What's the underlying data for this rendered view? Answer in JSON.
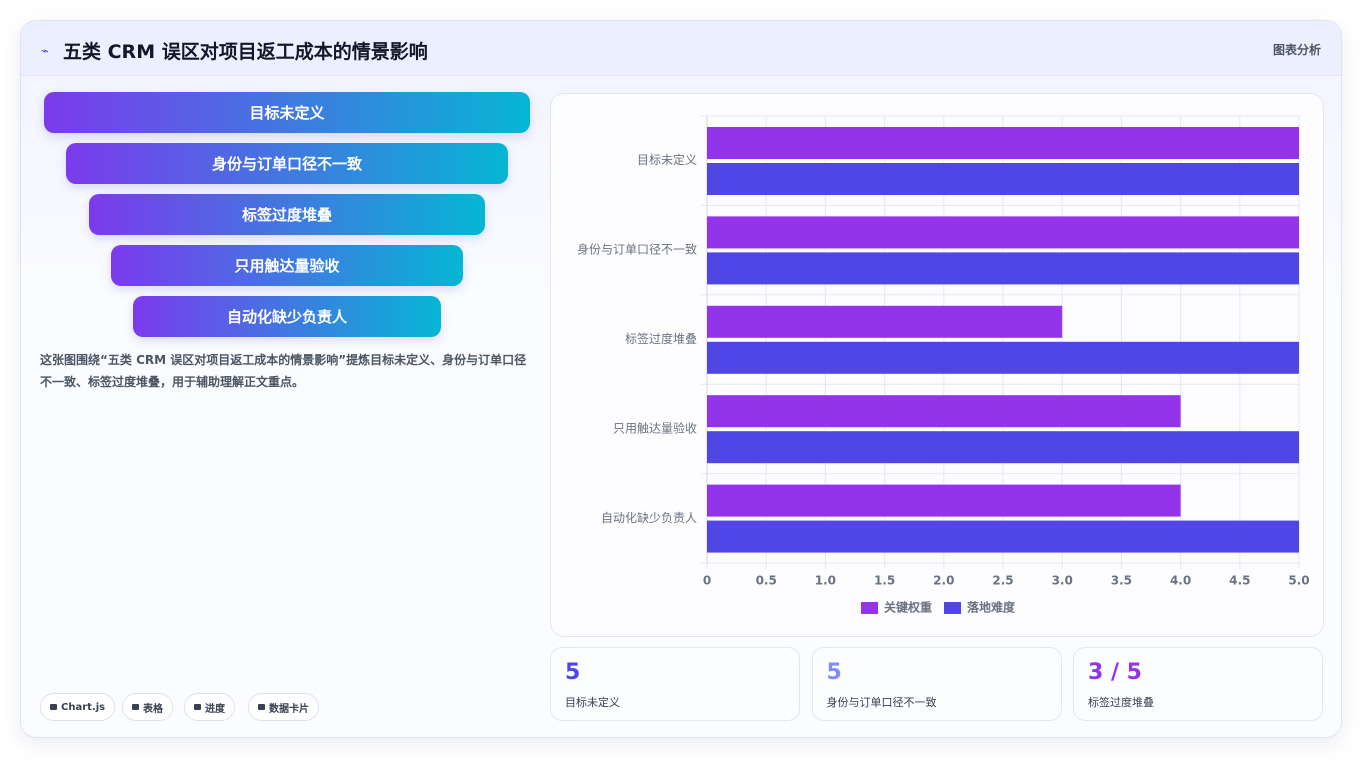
{
  "header": {
    "title": "五类 CRM 误区对项目返工成本的情景影响",
    "badge": "图表分析"
  },
  "funnel": [
    "目标未定义",
    "身份与订单口径不一致",
    "标签过度堆叠",
    "只用触达量验收",
    "自动化缺少负责人"
  ],
  "description": "这张图围绕“五类 CRM 误区对项目返工成本的情景影响”提炼目标未定义、身份与订单口径不一致、标签过度堆叠，用于辅助理解正文重点。",
  "chips": [
    "Chart.js",
    "表格",
    "进度",
    "数据卡片"
  ],
  "chart_data": {
    "type": "hbar",
    "categories": [
      "目标未定义",
      "身份与订单口径不一致",
      "标签过度堆叠",
      "只用触达量验收",
      "自动化缺少负责人"
    ],
    "series": [
      {
        "name": "关键权重",
        "color": "#9333ea",
        "values": [
          5,
          5,
          3,
          4,
          4
        ]
      },
      {
        "name": "落地难度",
        "color": "#4f46e5",
        "values": [
          5,
          5,
          5,
          5,
          5
        ]
      }
    ],
    "xlim": [
      0,
      5
    ],
    "xticks": [
      0,
      0.5,
      {
        "value": 1,
        "label": "1.0"
      },
      1.5,
      {
        "value": 2,
        "label": "2.0"
      },
      2.5,
      {
        "value": 3,
        "label": "3.0"
      },
      3.5,
      {
        "value": 4,
        "label": "4.0"
      },
      4.5,
      {
        "value": 5,
        "label": "5.0"
      }
    ],
    "grid": true,
    "legend": "bottom"
  },
  "stats": [
    {
      "value": 5,
      "label": "目标未定义"
    },
    {
      "value": 5,
      "label": "身份与订单口径不一致"
    },
    {
      "value": "3 / 5",
      "label": "标签过度堆叠"
    }
  ]
}
